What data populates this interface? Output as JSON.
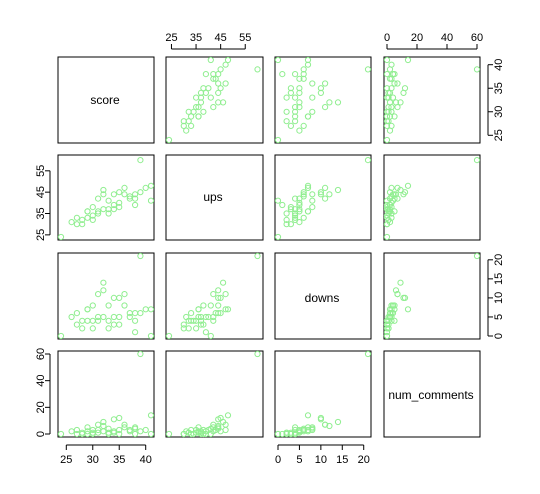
{
  "chart_data": {
    "type": "scatter",
    "title": "",
    "variables": [
      "score",
      "ups",
      "downs",
      "num_comments"
    ],
    "point_color": "#90ee90",
    "axis_ranges": {
      "score": [
        24,
        41
      ],
      "ups": [
        24,
        61
      ],
      "downs": [
        0,
        21
      ],
      "num_comments": [
        0,
        60
      ]
    },
    "ticks": {
      "score": [
        25,
        30,
        35,
        40
      ],
      "ups": [
        25,
        35,
        45,
        55
      ],
      "downs": [
        0,
        5,
        10,
        15,
        20
      ],
      "num_comments": [
        0,
        20,
        40,
        60
      ]
    },
    "axes": [
      {
        "var": "ups",
        "side": "top",
        "col": 1
      },
      {
        "var": "num_comments",
        "side": "top",
        "col": 3
      },
      {
        "var": "ups",
        "side": "left",
        "row": 1
      },
      {
        "var": "num_comments",
        "side": "left",
        "row": 3
      },
      {
        "var": "score",
        "side": "bottom",
        "col": 0
      },
      {
        "var": "downs",
        "side": "bottom",
        "col": 2
      },
      {
        "var": "score",
        "side": "right",
        "row": 0
      },
      {
        "var": "downs",
        "side": "right",
        "row": 2
      }
    ],
    "observations": [
      {
        "score": 24,
        "ups": 24,
        "downs": 0,
        "num_comments": 0
      },
      {
        "score": 26,
        "ups": 31,
        "downs": 5,
        "num_comments": 2
      },
      {
        "score": 27,
        "ups": 33,
        "downs": 6,
        "num_comments": 3
      },
      {
        "score": 27,
        "ups": 30,
        "downs": 3,
        "num_comments": 0
      },
      {
        "score": 28,
        "ups": 32,
        "downs": 4,
        "num_comments": 1
      },
      {
        "score": 28,
        "ups": 30,
        "downs": 2,
        "num_comments": 0
      },
      {
        "score": 29,
        "ups": 33,
        "downs": 4,
        "num_comments": 0
      },
      {
        "score": 29,
        "ups": 36,
        "downs": 7,
        "num_comments": 5
      },
      {
        "score": 29,
        "ups": 36,
        "downs": 7,
        "num_comments": 2
      },
      {
        "score": 30,
        "ups": 32,
        "downs": 2,
        "num_comments": 1
      },
      {
        "score": 30,
        "ups": 38,
        "downs": 8,
        "num_comments": 3
      },
      {
        "score": 30,
        "ups": 34,
        "downs": 4,
        "num_comments": 0
      },
      {
        "score": 31,
        "ups": 42,
        "downs": 11,
        "num_comments": 7
      },
      {
        "score": 31,
        "ups": 36,
        "downs": 5,
        "num_comments": 1
      },
      {
        "score": 31,
        "ups": 35,
        "downs": 4,
        "num_comments": 3
      },
      {
        "score": 32,
        "ups": 46,
        "downs": 14,
        "num_comments": 9
      },
      {
        "score": 32,
        "ups": 44,
        "downs": 12,
        "num_comments": 6
      },
      {
        "score": 32,
        "ups": 37,
        "downs": 5,
        "num_comments": 2
      },
      {
        "score": 33,
        "ups": 41,
        "downs": 8,
        "num_comments": 4
      },
      {
        "score": 33,
        "ups": 35,
        "downs": 2,
        "num_comments": 1
      },
      {
        "score": 33,
        "ups": 37,
        "downs": 4,
        "num_comments": 0
      },
      {
        "score": 34,
        "ups": 39,
        "downs": 5,
        "num_comments": 2
      },
      {
        "score": 34,
        "ups": 37,
        "downs": 3,
        "num_comments": 1
      },
      {
        "score": 34,
        "ups": 44,
        "downs": 10,
        "num_comments": 11
      },
      {
        "score": 35,
        "ups": 45,
        "downs": 10,
        "num_comments": 12
      },
      {
        "score": 35,
        "ups": 38,
        "downs": 3,
        "num_comments": 0
      },
      {
        "score": 35,
        "ups": 40,
        "downs": 5,
        "num_comments": 3
      },
      {
        "score": 36,
        "ups": 47,
        "downs": 11,
        "num_comments": 7
      },
      {
        "score": 36,
        "ups": 44,
        "downs": 8,
        "num_comments": 5
      },
      {
        "score": 37,
        "ups": 43,
        "downs": 6,
        "num_comments": 3
      },
      {
        "score": 37,
        "ups": 42,
        "downs": 5,
        "num_comments": 2
      },
      {
        "score": 38,
        "ups": 44,
        "downs": 6,
        "num_comments": 4
      },
      {
        "score": 38,
        "ups": 39,
        "downs": 1,
        "num_comments": 0
      },
      {
        "score": 38,
        "ups": 42,
        "downs": 4,
        "num_comments": 5
      },
      {
        "score": 39,
        "ups": 45,
        "downs": 6,
        "num_comments": 2
      },
      {
        "score": 39,
        "ups": 60,
        "downs": 21,
        "num_comments": 60
      },
      {
        "score": 40,
        "ups": 47,
        "downs": 7,
        "num_comments": 3
      },
      {
        "score": 41,
        "ups": 48,
        "downs": 7,
        "num_comments": 14
      },
      {
        "score": 41,
        "ups": 41,
        "downs": 0,
        "num_comments": 0
      }
    ]
  }
}
